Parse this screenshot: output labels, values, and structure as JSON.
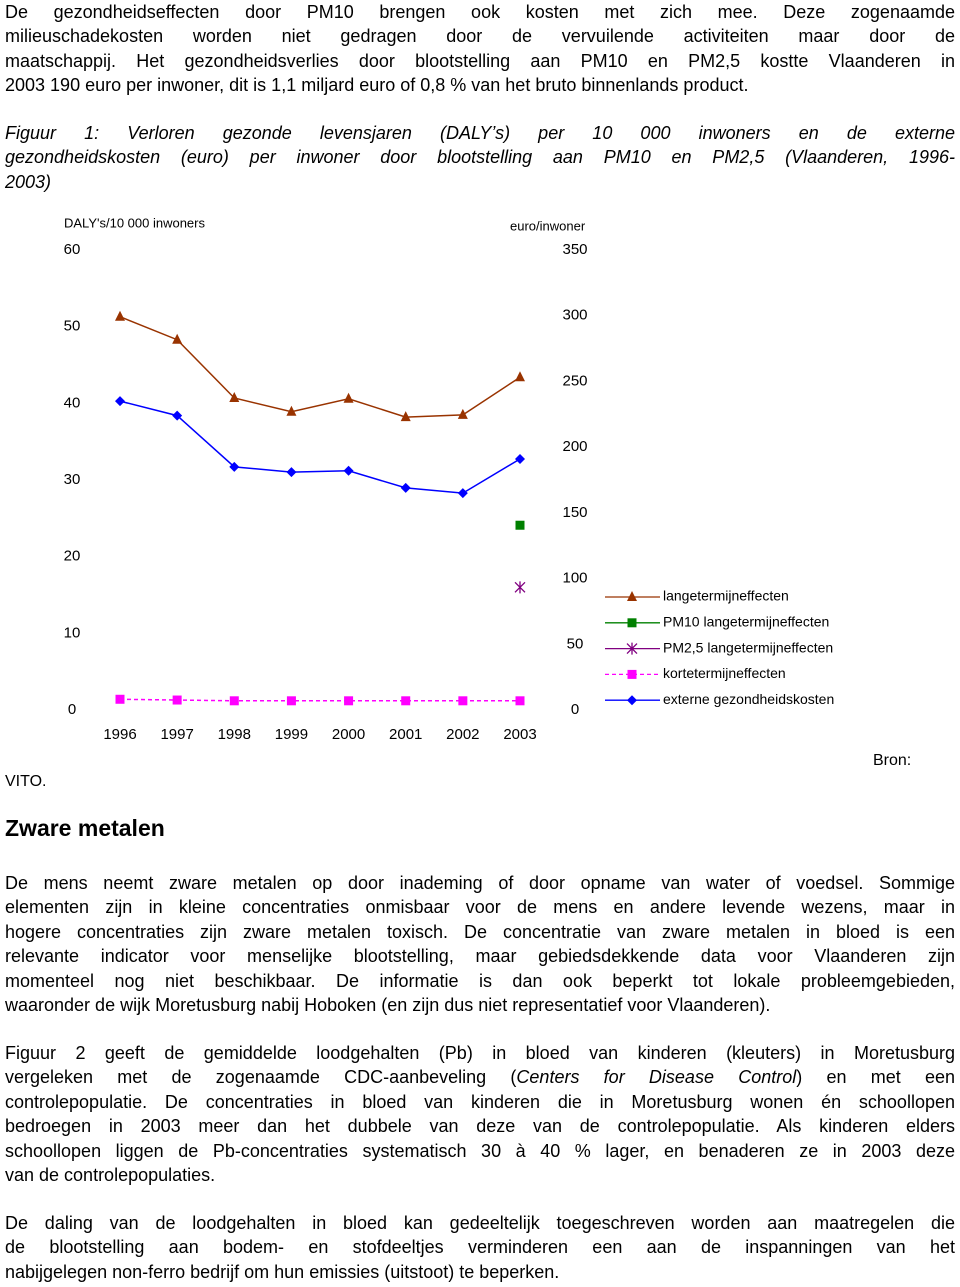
{
  "paragraph_1": [
    "De gezondheidseffecten door PM10 brengen ook kosten met zich mee. Deze zogenaamde",
    "milieuschadekosten worden niet gedragen door de vervuilende activiteiten maar door de",
    "maatschappij. Het gezondheidsverlies door blootstelling aan PM10 en PM2,5 kostte Vlaanderen in",
    "2003 190 euro per inwoner, dit is 1,1 miljard euro of 0,8 % van het bruto binnenlands product."
  ],
  "caption": [
    "Figuur 1: Verloren gezonde levensjaren (DALY’s) per 10 000 inwoners en de externe",
    "gezondheidskosten (euro) per inwoner door blootstelling aan PM10 en PM2,5 (Vlaanderen, 1996-",
    "2003)"
  ],
  "chart_data": {
    "type": "line",
    "ylabel": "DALY's/10 000 inwoners",
    "y2label": "euro/inwoner",
    "categories": [
      "1996",
      "1997",
      "1998",
      "1999",
      "2000",
      "2001",
      "2002",
      "2003"
    ],
    "ylim": [
      0,
      60
    ],
    "yticks": [
      0,
      10,
      20,
      30,
      40,
      50,
      60
    ],
    "y2lim": [
      0,
      350
    ],
    "y2ticks": [
      0,
      50,
      100,
      150,
      200,
      250,
      300,
      350
    ],
    "grid": false,
    "legend": "right",
    "series": [
      {
        "name": "langetermijneffecten",
        "color": "#993300",
        "marker": "triangle",
        "dash": false,
        "values": [
          51.3,
          48.3,
          40.7,
          38.9,
          40.6,
          38.2,
          38.5,
          43.4
        ]
      },
      {
        "name": "PM10 langetermijneffecten",
        "color": "#008000",
        "marker": "square",
        "dash": false,
        "values": [
          null,
          null,
          null,
          null,
          null,
          null,
          null,
          24.1
        ]
      },
      {
        "name": "PM2,5 langetermijneffecten",
        "color": "#800080",
        "marker": "star",
        "dash": false,
        "values": [
          null,
          null,
          null,
          null,
          null,
          null,
          null,
          16.0
        ]
      },
      {
        "name": "kortetermijneffecten",
        "color": "#ff00ff",
        "marker": "square",
        "dash": true,
        "values": [
          1.4,
          1.3,
          1.2,
          1.2,
          1.2,
          1.2,
          1.2,
          1.2
        ]
      },
      {
        "name": "externe gezondheidskosten",
        "color": "#0000ff",
        "marker": "diamond",
        "dash": false,
        "axis": "y2",
        "values": [
          235,
          224,
          185,
          181,
          182,
          169,
          165,
          191
        ]
      }
    ]
  },
  "source_label": "Bron:",
  "source": "VITO.",
  "heading": "Zware metalen",
  "paragraph_2": [
    "De mens neemt zware metalen op door inademing of door opname van water of voedsel. Sommige",
    "elementen zijn in kleine concentraties onmisbaar voor de mens en andere levende wezens, maar in",
    "hogere concentraties zijn zware metalen toxisch. De concentratie van zware metalen in bloed is een",
    "relevante indicator voor menselijke blootstelling, maar gebiedsdekkende data voor Vlaanderen zijn",
    "momenteel nog niet beschikbaar. De informatie is dan ook beperkt tot lokale probleemgebieden,",
    "waaronder de wijk Moretusburg nabij Hoboken (en zijn dus niet representatief voor Vlaanderen)."
  ],
  "paragraph_3": [
    "Figuur 2 geeft de gemiddelde loodgehalten (Pb) in bloed van kinderen (kleuters) in Moretusburg",
    [
      "vergeleken met de zogenaamde CDC-aanbeveling (",
      {
        "italic": "Centers for Disease Control"
      },
      ") en met een"
    ],
    "controlepopulatie. De concentraties in bloed van kinderen die in Moretusburg wonen én schoollopen",
    "bedroegen in 2003 meer dan het dubbele van deze van de controlepopulatie. Als kinderen elders",
    "schoollopen liggen de Pb-concentraties systematisch 30 à 40 % lager, en benaderen ze in 2003 deze",
    "van de controlepopulaties."
  ],
  "paragraph_4": [
    "De daling van de loodgehalten in bloed kan gedeeltelijk toegeschreven worden aan maatregelen die",
    "de blootstelling aan bodem- en stofdeeltjes verminderen een aan de inspanningen van het",
    "nabijgelegen non-ferro bedrijf om hun emissies (uitstoot) te beperken."
  ]
}
